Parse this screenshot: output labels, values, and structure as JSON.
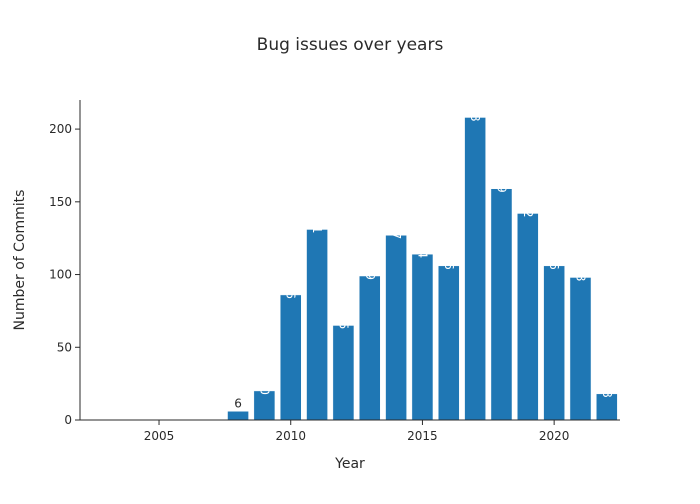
{
  "chart_data": {
    "type": "bar",
    "title": "Bug issues over years",
    "xlabel": "Year",
    "ylabel": "Number of Commits",
    "x": [
      2008,
      2009,
      2010,
      2011,
      2012,
      2013,
      2014,
      2015,
      2016,
      2017,
      2018,
      2019,
      2020,
      2021,
      2022
    ],
    "values": [
      6,
      20,
      86,
      131,
      65,
      99,
      127,
      114,
      106,
      208,
      159,
      142,
      106,
      98,
      18
    ],
    "xlim": [
      2002,
      2022.5
    ],
    "ylim": [
      0,
      220
    ],
    "x_ticks": [
      2005,
      2010,
      2015,
      2020
    ],
    "y_ticks": [
      0,
      50,
      100,
      150,
      200
    ],
    "grid": false,
    "bar_color": "#1f77b4",
    "data_labels": true
  }
}
